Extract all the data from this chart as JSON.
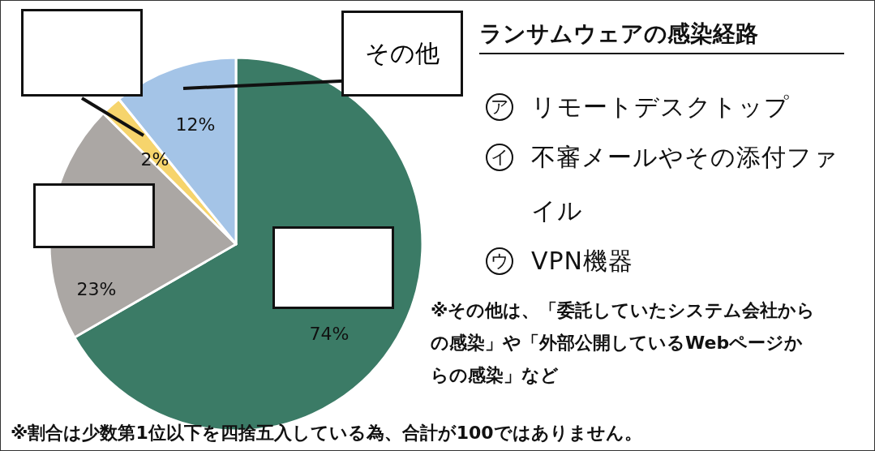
{
  "chart_data": {
    "type": "pie",
    "title": "ランサムウェアの感染経路",
    "categories": [
      null,
      null,
      null,
      "その他"
    ],
    "values": [
      74,
      23,
      2,
      12
    ],
    "colors": [
      "#3b7b66",
      "#aba7a4",
      "#f6d46c",
      "#a4c4e7"
    ],
    "value_labels": [
      "74%",
      "23%",
      "2%",
      "12%"
    ],
    "annotations": [
      "ア リモートデスクトップ",
      "イ 不審メールやその添付ファイル",
      "ウ VPN機器",
      "※その他は、「委託していたシステム会社からの感染」や「外部公開しているWebページからの感染」など",
      "※割合は少数第1位以下を四捨五入している為、合計が100ではありません。"
    ]
  }
}
